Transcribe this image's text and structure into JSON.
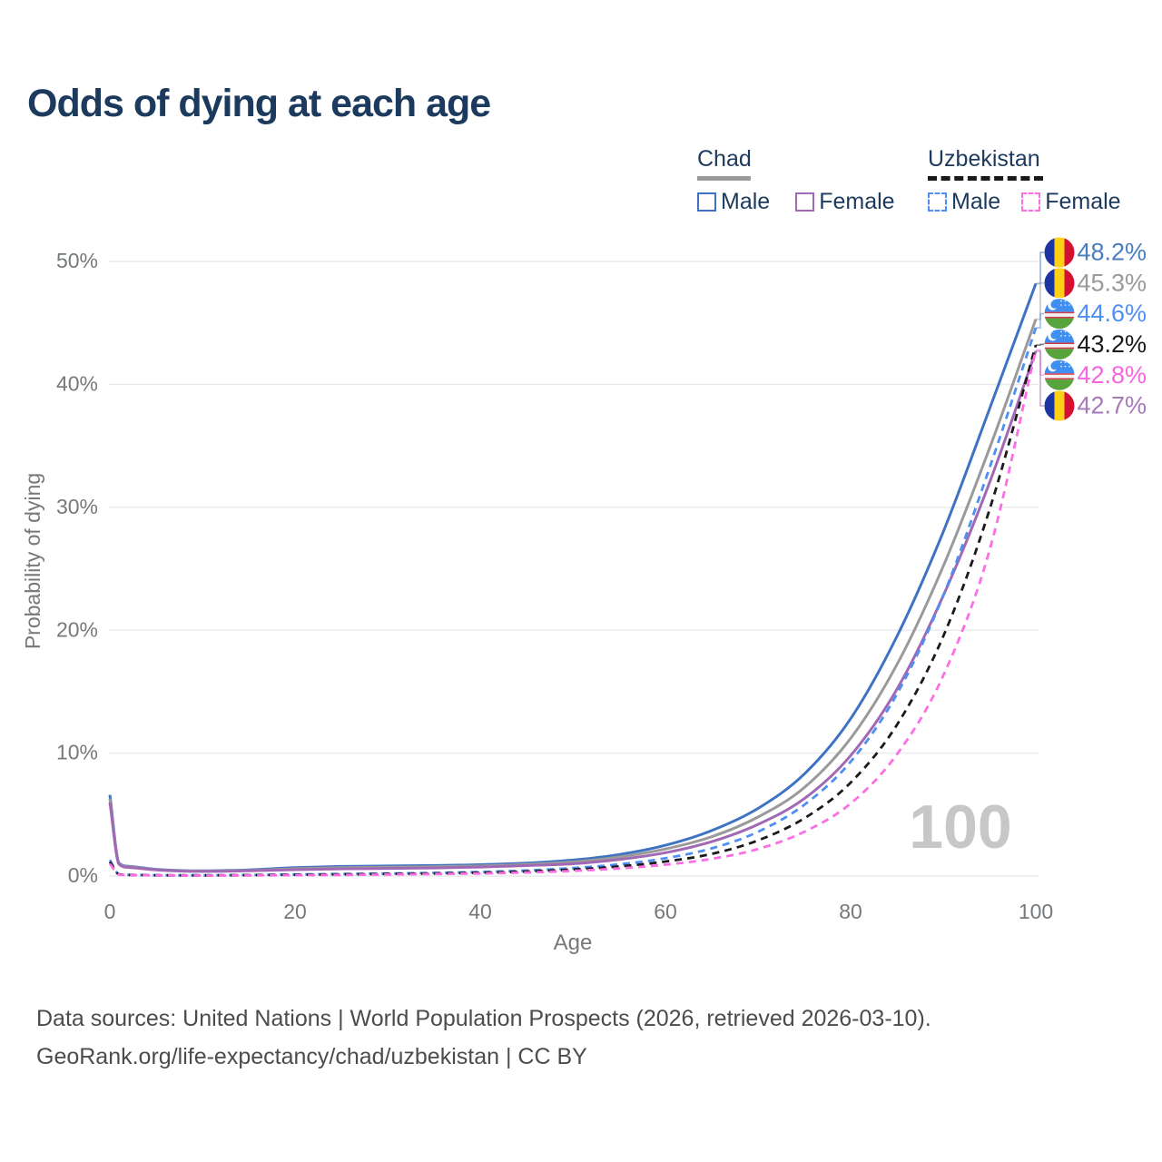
{
  "title": "Odds of dying at each age",
  "legend": {
    "chad_label": "Chad",
    "uzbekistan_label": "Uzbekistan",
    "male_label": "Male",
    "female_label": "Female"
  },
  "colors": {
    "title_text": "#1c3a5e",
    "axis_text": "#75797c",
    "gridline": "#e9e9ee",
    "watermark": "#c7c7c7",
    "footer_text": "#4c4c4c",
    "chad_male": "#3e73c4",
    "chad_both": "#9a9a9a",
    "chad_female": "#a169b4",
    "uzbekistan_male": "#4d8ff2",
    "uzbekistan_both": "#1a1a1a",
    "uzbekistan_female": "#fb6ee4"
  },
  "chart_data": {
    "type": "line",
    "title": "Odds of dying at each age",
    "xlabel": "Age",
    "ylabel": "Probability of dying",
    "x_ticks": [
      0,
      20,
      40,
      60,
      80,
      100
    ],
    "y_ticks": [
      "0%",
      "10%",
      "20%",
      "30%",
      "40%",
      "50%"
    ],
    "xlim": [
      0,
      100
    ],
    "ylim": [
      0,
      52
    ],
    "grid": "horizontal",
    "legend_position": "top-right",
    "watermark": "100",
    "ages": [
      0,
      1,
      2,
      5,
      10,
      15,
      20,
      25,
      30,
      35,
      40,
      45,
      50,
      55,
      60,
      65,
      70,
      75,
      80,
      85,
      90,
      95,
      100
    ],
    "series": [
      {
        "id": "chad-male",
        "name": "Chad Male",
        "country": "chad",
        "line_style": "solid",
        "color_key": "chad_male",
        "end_label": "48.2%",
        "end_value": 48.2,
        "label_color": "#4a7dc0",
        "values": [
          6.6,
          1.05,
          0.8,
          0.55,
          0.42,
          0.5,
          0.68,
          0.78,
          0.82,
          0.86,
          0.92,
          1.05,
          1.3,
          1.75,
          2.5,
          3.7,
          5.5,
          8.3,
          12.8,
          19.5,
          28.0,
          38.0,
          48.2
        ]
      },
      {
        "id": "chad-both",
        "name": "Chad Both sexes",
        "country": "chad",
        "line_style": "solid",
        "color_key": "chad_both",
        "end_label": "45.3%",
        "end_value": 45.3,
        "label_color": "#9a9a9a",
        "values": [
          6.3,
          1.0,
          0.75,
          0.52,
          0.4,
          0.45,
          0.6,
          0.68,
          0.72,
          0.76,
          0.82,
          0.95,
          1.15,
          1.55,
          2.2,
          3.2,
          4.8,
          7.2,
          11.2,
          17.2,
          25.2,
          34.8,
          45.3
        ]
      },
      {
        "id": "chad-female",
        "name": "Chad Female",
        "country": "chad",
        "line_style": "solid",
        "color_key": "chad_female",
        "end_label": "42.7%",
        "end_value": 42.7,
        "label_color": "#a879b8",
        "values": [
          6.0,
          0.95,
          0.7,
          0.5,
          0.38,
          0.42,
          0.52,
          0.58,
          0.62,
          0.66,
          0.73,
          0.85,
          1.0,
          1.35,
          1.9,
          2.8,
          4.2,
          6.3,
          9.8,
          15.2,
          22.8,
          32.0,
          42.7
        ]
      },
      {
        "id": "uzbekistan-male",
        "name": "Uzbekistan Male",
        "country": "uzbekistan",
        "line_style": "dashed",
        "color_key": "uzbekistan_male",
        "end_label": "44.6%",
        "end_value": 44.6,
        "label_color": "#4d8ff2",
        "values": [
          1.3,
          0.15,
          0.1,
          0.07,
          0.06,
          0.09,
          0.13,
          0.17,
          0.21,
          0.26,
          0.33,
          0.45,
          0.65,
          0.95,
          1.45,
          2.25,
          3.6,
          5.8,
          9.3,
          14.8,
          22.8,
          33.2,
          44.6
        ]
      },
      {
        "id": "uzbekistan-both",
        "name": "Uzbekistan Both sexes",
        "country": "uzbekistan",
        "line_style": "dashed",
        "color_key": "uzbekistan_both",
        "end_label": "43.2%",
        "end_value": 43.2,
        "label_color": "#1a1a1a",
        "values": [
          1.15,
          0.13,
          0.09,
          0.06,
          0.05,
          0.07,
          0.1,
          0.13,
          0.17,
          0.21,
          0.27,
          0.37,
          0.53,
          0.78,
          1.18,
          1.8,
          2.9,
          4.7,
          7.6,
          12.3,
          19.5,
          29.8,
          43.2
        ]
      },
      {
        "id": "uzbekistan-female",
        "name": "Uzbekistan Female",
        "country": "uzbekistan",
        "line_style": "dashed",
        "color_key": "uzbekistan_female",
        "end_label": "42.8%",
        "end_value": 42.8,
        "label_color": "#f666e0",
        "values": [
          1.0,
          0.11,
          0.08,
          0.05,
          0.04,
          0.05,
          0.07,
          0.09,
          0.12,
          0.16,
          0.21,
          0.29,
          0.42,
          0.62,
          0.92,
          1.4,
          2.2,
          3.6,
          5.9,
          9.9,
          16.3,
          26.5,
          42.8
        ]
      }
    ]
  },
  "footer": {
    "line1": "Data sources: United Nations | World Population Prospects (2026, retrieved 2026-03-10).",
    "line2": "GeoRank.org/life-expectancy/chad/uzbekistan | CC BY"
  }
}
